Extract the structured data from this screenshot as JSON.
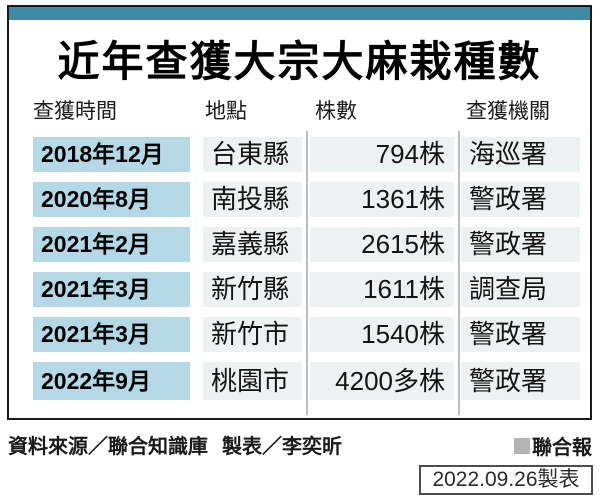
{
  "title": "近年查獲大宗大麻栽種數",
  "table": {
    "headers": [
      "查獲時間",
      "地點",
      "株數",
      "查獲機關"
    ],
    "rows": [
      {
        "time": "2018年12月",
        "place": "台東縣",
        "count": "794株",
        "agency": "海巡署"
      },
      {
        "time": "2020年8月",
        "place": "南投縣",
        "count": "1361株",
        "agency": "警政署"
      },
      {
        "time": "2021年2月",
        "place": "嘉義縣",
        "count": "2615株",
        "agency": "警政署"
      },
      {
        "time": "2021年3月",
        "place": "新竹縣",
        "count": "1611株",
        "agency": "調查局"
      },
      {
        "time": "2021年3月",
        "place": "新竹市",
        "count": "1540株",
        "agency": "警政署"
      },
      {
        "time": "2022年9月",
        "place": "桃園市",
        "count": "4200多株",
        "agency": "警政署"
      }
    ]
  },
  "footer": {
    "source_label": "資料來源／聯合知識庫",
    "credit_label": "製表／李奕昕",
    "brand_label": "聯合報",
    "date_note": "2022.09.26製表"
  },
  "colors": {
    "top_bar": "#3f8ba6",
    "date_cell": "#b5d8e7",
    "data_cell": "#eef1f2",
    "panel_border": "#1b1b1b",
    "brand_square": "#b4b4b4"
  },
  "chart_data": {
    "type": "table",
    "title": "近年查獲大宗大麻栽種數",
    "columns": [
      "查獲時間",
      "地點",
      "株數",
      "查獲機關"
    ],
    "rows": [
      [
        "2018年12月",
        "台東縣",
        "794株",
        "海巡署"
      ],
      [
        "2020年8月",
        "南投縣",
        "1361株",
        "警政署"
      ],
      [
        "2021年2月",
        "嘉義縣",
        "2615株",
        "警政署"
      ],
      [
        "2021年3月",
        "新竹縣",
        "1611株",
        "調查局"
      ],
      [
        "2021年3月",
        "新竹市",
        "1540株",
        "警政署"
      ],
      [
        "2022年9月",
        "桃園市",
        "4200多株",
        "警政署"
      ]
    ],
    "notes": [
      "資料來源／聯合知識庫",
      "製表／李奕昕",
      "聯合報",
      "2022.09.26製表"
    ]
  }
}
